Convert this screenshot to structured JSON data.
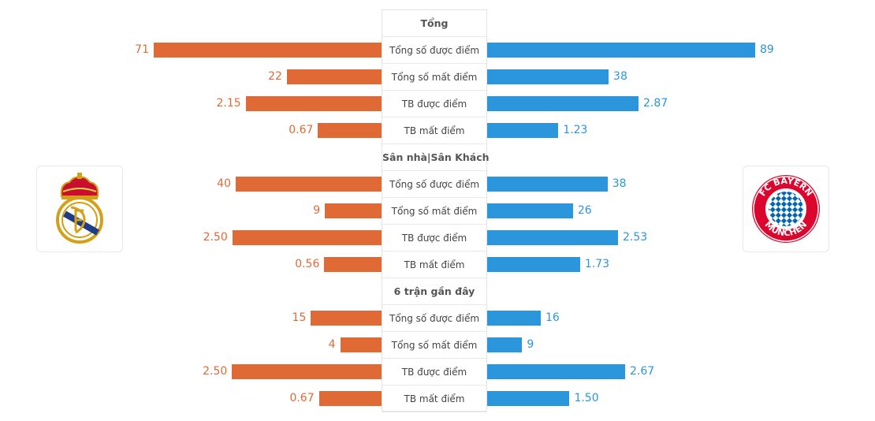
{
  "colors": {
    "home": "#e06a36",
    "away": "#2b96db"
  },
  "home_team": {
    "logo_icon": "real-madrid-crest"
  },
  "away_team": {
    "logo_icon": "fc-bayern-munchen-crest"
  },
  "sections": [
    {
      "title": "Tổng",
      "rows": [
        {
          "label": "Tổng số được điểm",
          "home": "71",
          "away": "89"
        },
        {
          "label": "Tổng số mất điểm",
          "home": "22",
          "away": "38"
        },
        {
          "label": "TB được điểm",
          "home": "2.15",
          "away": "2.87"
        },
        {
          "label": "TB mất điểm",
          "home": "0.67",
          "away": "1.23"
        }
      ]
    },
    {
      "title": "Sân nhà|Sân Khách",
      "rows": [
        {
          "label": "Tổng số được điểm",
          "home": "40",
          "away": "38"
        },
        {
          "label": "Tổng số mất điểm",
          "home": "9",
          "away": "26"
        },
        {
          "label": "TB được điểm",
          "home": "2.50",
          "away": "2.53"
        },
        {
          "label": "TB mất điểm",
          "home": "0.56",
          "away": "1.73"
        }
      ]
    },
    {
      "title": "6 trận gần đây",
      "rows": [
        {
          "label": "Tổng số được điểm",
          "home": "15",
          "away": "16"
        },
        {
          "label": "Tổng số mất điểm",
          "home": "4",
          "away": "9"
        },
        {
          "label": "TB được điểm",
          "home": "2.50",
          "away": "2.67"
        },
        {
          "label": "TB mất điểm",
          "home": "0.67",
          "away": "1.50"
        }
      ]
    }
  ]
}
